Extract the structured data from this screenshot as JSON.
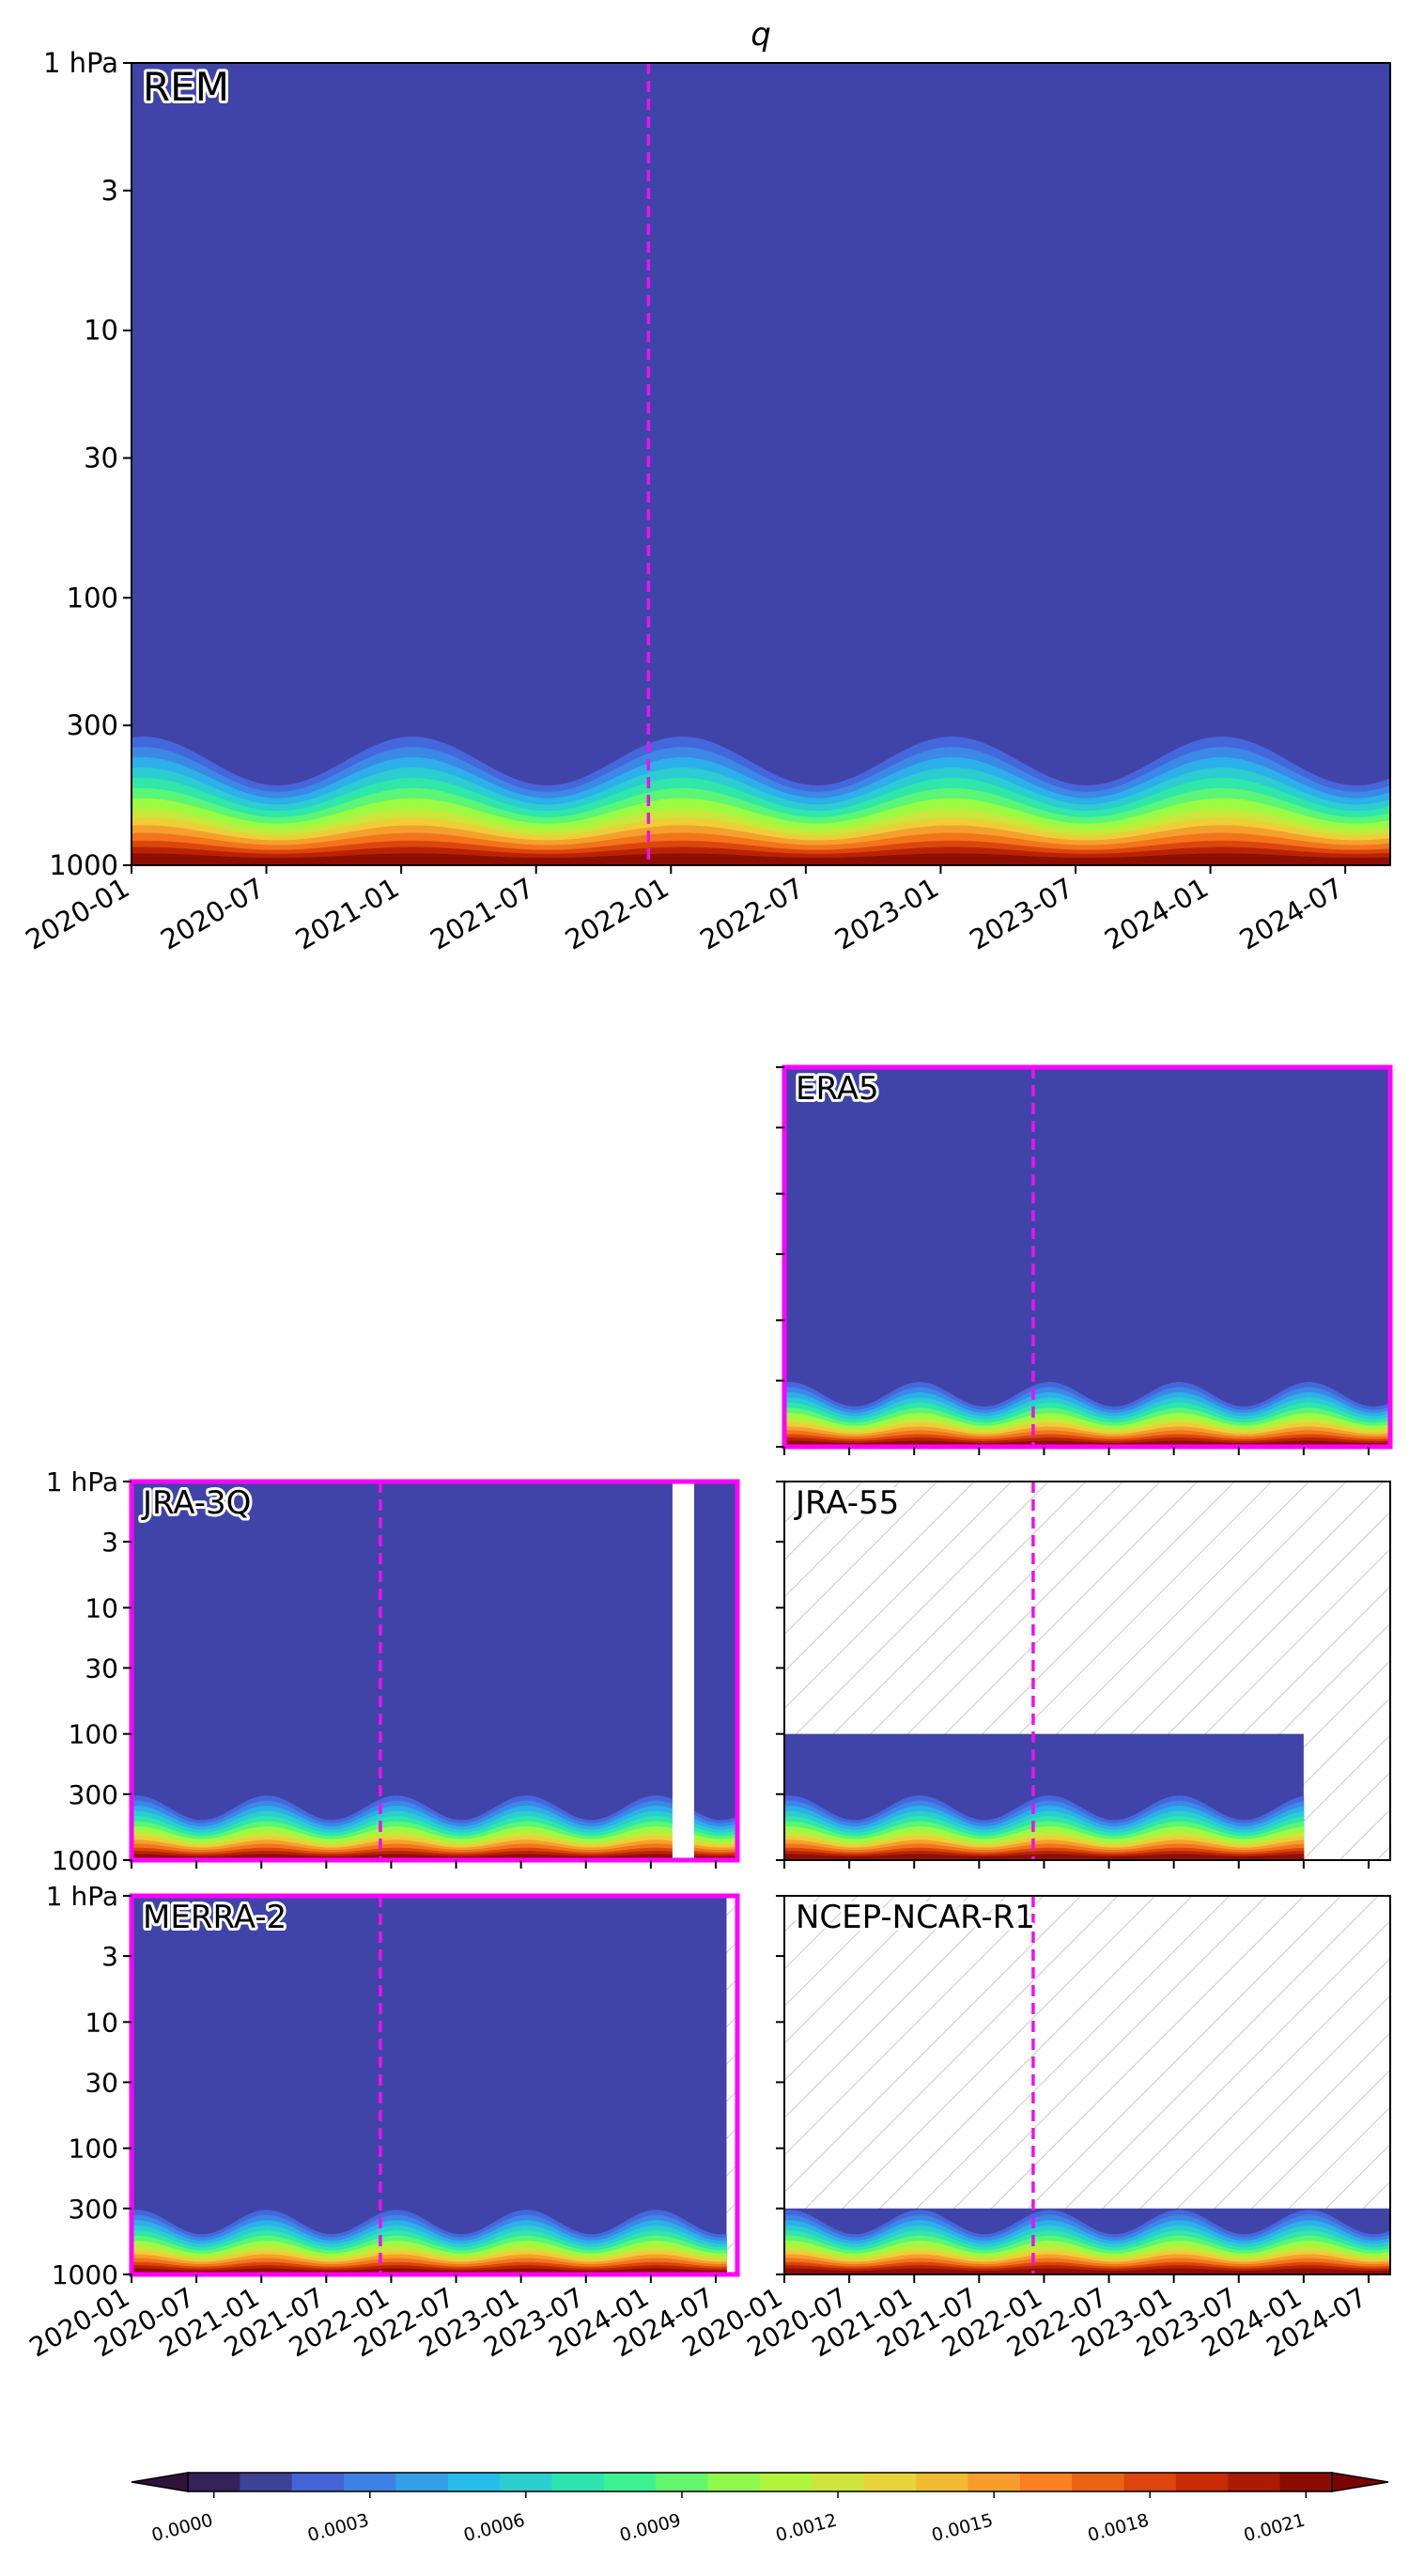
{
  "chart_data": [
    {
      "type": "heatmap",
      "panel": "main",
      "title": "q",
      "label": "REM",
      "label_color": "#ff00ff",
      "y_ticks": [
        "1 hPa",
        "3",
        "10",
        "30",
        "100",
        "300",
        "1000"
      ],
      "y_scale": "log (pressure, inverted)",
      "ylim": [
        1000,
        1
      ],
      "x_ticks": [
        "2020-01",
        "2020-07",
        "2021-01",
        "2021-07",
        "2022-01",
        "2022-07",
        "2023-01",
        "2023-07",
        "2024-01",
        "2024-07"
      ],
      "xlim": [
        "2020-01",
        "2024-09"
      ],
      "marker_date": "2021-12",
      "marker_style": "dashed magenta vertical line",
      "cycle": "annual, moisture maximum near January",
      "highlight_frame": false
    },
    {
      "type": "heatmap",
      "panel": "ERA5",
      "label": "ERA5",
      "highlight_frame": true,
      "data_top_hPa": 1,
      "marker_date": "2021-12"
    },
    {
      "type": "heatmap",
      "panel": "JRA-3Q",
      "label": "JRA-3Q",
      "highlight_frame": true,
      "data_top_hPa": 1,
      "gap": [
        "2024-03",
        "2024-05"
      ],
      "marker_date": "2021-12"
    },
    {
      "type": "heatmap",
      "panel": "JRA-55",
      "label": "JRA-55",
      "highlight_frame": false,
      "data_top_hPa": 100,
      "data_end": "2024-01",
      "missing": "hatched",
      "marker_date": "2021-12"
    },
    {
      "type": "heatmap",
      "panel": "MERRA-2",
      "label": "MERRA-2",
      "highlight_frame": true,
      "data_top_hPa": 1,
      "data_end": "2024-08",
      "missing": "hatched",
      "marker_date": "2021-12"
    },
    {
      "type": "heatmap",
      "panel": "NCEP-NCAR-R1",
      "label": "NCEP-NCAR-R1",
      "highlight_frame": false,
      "data_top_hPa": 300,
      "missing": "hatched",
      "marker_date": "2021-12"
    }
  ],
  "small_y_ticks": [
    "1 hPa",
    "3",
    "10",
    "30",
    "100",
    "300",
    "1000"
  ],
  "small_x_ticks": [
    "2020-01",
    "2020-07",
    "2021-01",
    "2021-07",
    "2022-01",
    "2022-07",
    "2023-01",
    "2023-07",
    "2024-01",
    "2024-07"
  ],
  "colorbar": {
    "ticks": [
      "0.0000",
      "0.0003",
      "0.0006",
      "0.0009",
      "0.0012",
      "0.0015",
      "0.0018",
      "0.0021"
    ],
    "min": 0.0,
    "max": 0.0022,
    "step": 0.0001,
    "extend": "both",
    "colormap": "turbo"
  },
  "colors": {
    "background_level": "#4044a8",
    "marker": "#ee10ee",
    "frame_highlight": "#ff00ff",
    "hatch": "#c8c8c8"
  }
}
